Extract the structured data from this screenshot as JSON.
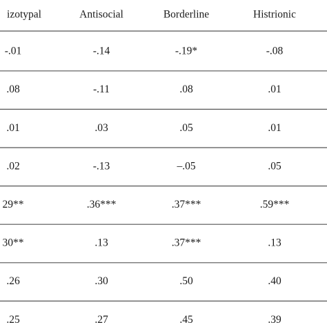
{
  "table": {
    "header": [
      "izotypal",
      "Antisocial",
      "Borderline",
      "Histrionic"
    ],
    "rows": [
      [
        "-.01",
        "-.14",
        "-.19*",
        "-.08"
      ],
      [
        ".08",
        "-.11",
        ".08",
        ".01"
      ],
      [
        ".01",
        ".03",
        ".05",
        ".01"
      ],
      [
        ".02",
        "-.13",
        "–.05",
        ".05"
      ],
      [
        "29**",
        ".36***",
        ".37***",
        ".59***"
      ],
      [
        "30**",
        ".13",
        ".37***",
        ".13"
      ],
      [
        ".26",
        ".30",
        ".50",
        ".40"
      ],
      [
        ".25",
        ".27",
        ".45",
        ".39"
      ]
    ]
  }
}
